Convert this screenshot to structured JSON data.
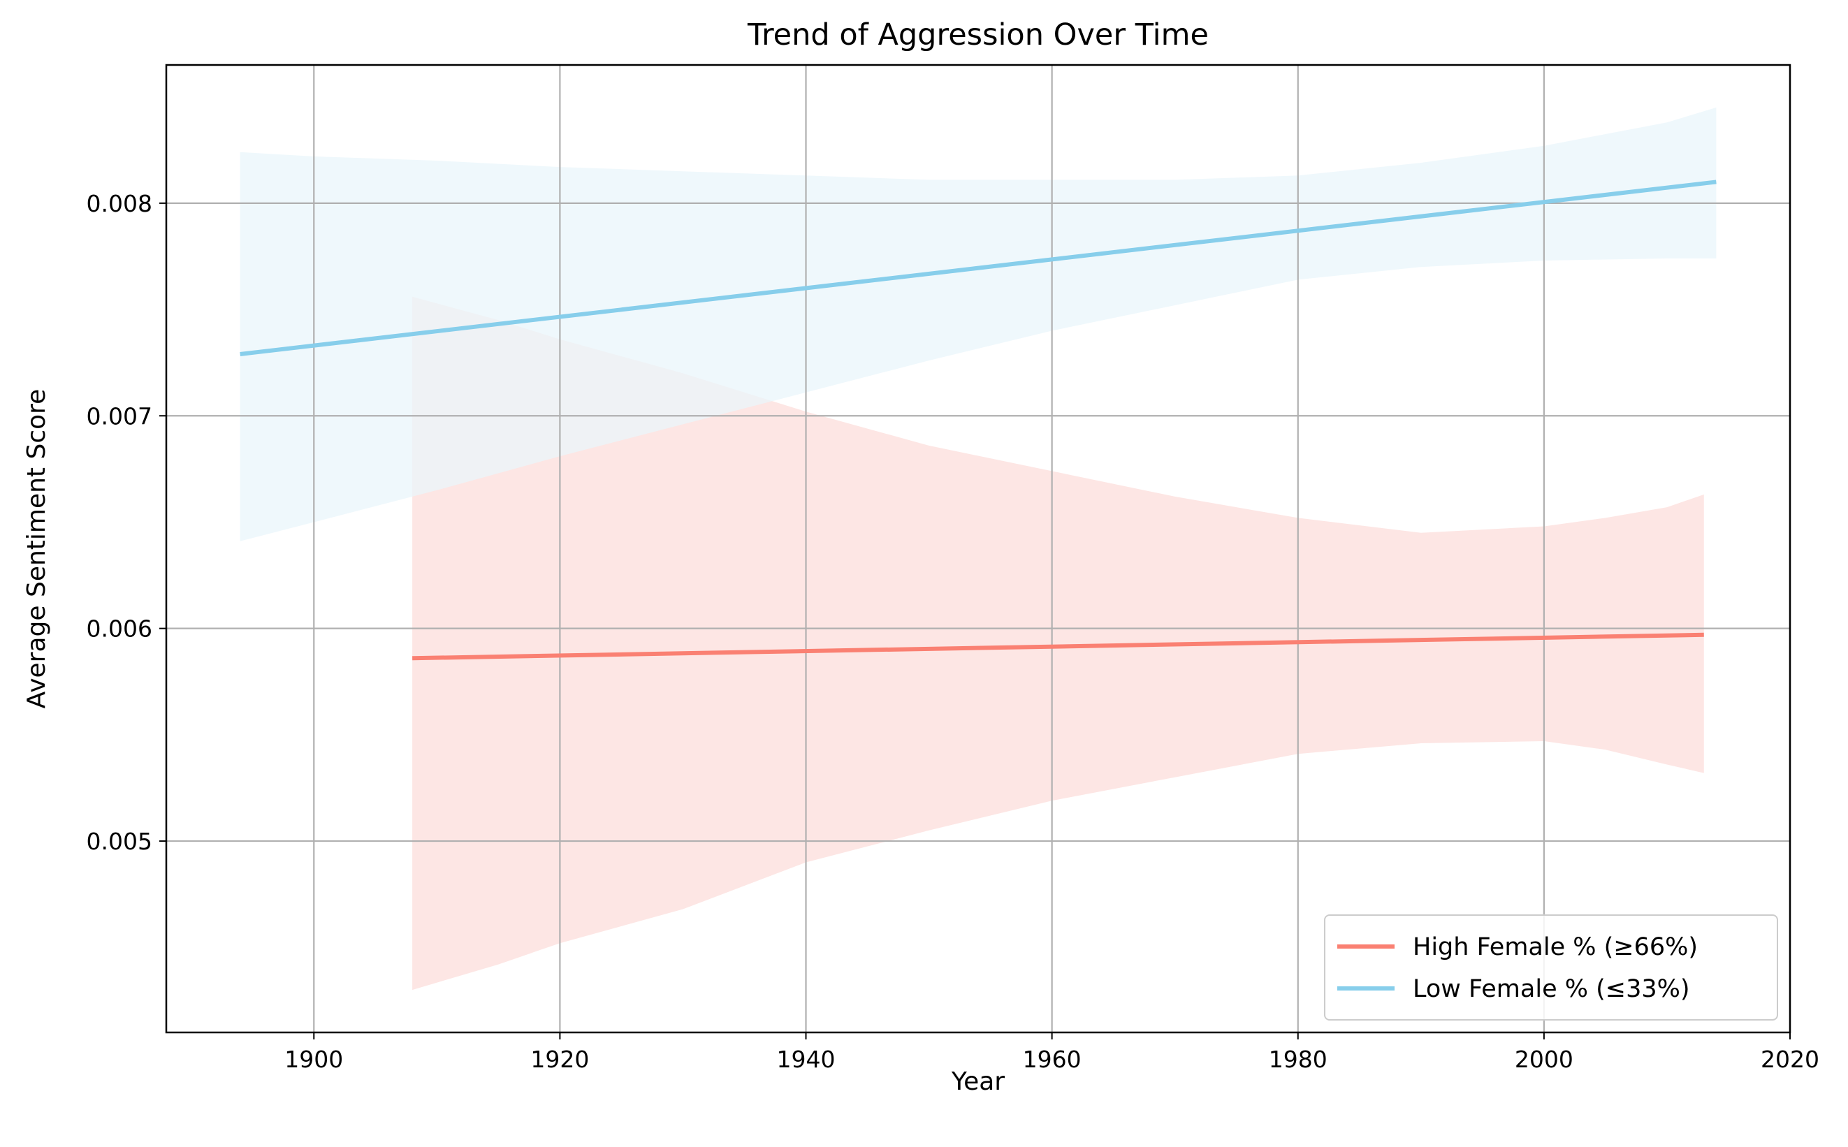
{
  "chart_data": {
    "type": "line",
    "title": "Trend of Aggression Over Time",
    "xlabel": "Year",
    "ylabel": "Average Sentiment Score",
    "xlim": [
      1888,
      2020
    ],
    "ylim": [
      0.0041,
      0.00865
    ],
    "x_ticks": [
      1900,
      1920,
      1940,
      1960,
      1980,
      2000,
      2020
    ],
    "x_tick_labels": [
      "1900",
      "1920",
      "1940",
      "1960",
      "1980",
      "2000",
      "2020"
    ],
    "y_ticks": [
      0.005,
      0.006,
      0.007,
      0.008
    ],
    "y_tick_labels": [
      "0.005",
      "0.006",
      "0.007",
      "0.008"
    ],
    "grid": true,
    "legend_position": "lower-right",
    "series": [
      {
        "name": "High Female % (≥66%)",
        "color": "#FA8072",
        "band_color": "#FDE6E4",
        "x": [
          1908,
          2013
        ],
        "y": [
          0.00586,
          0.00597
        ],
        "ci_band": {
          "x": [
            1908,
            1915,
            1920,
            1930,
            1940,
            1950,
            1960,
            1970,
            1980,
            1990,
            2000,
            2005,
            2010,
            2013
          ],
          "upper": [
            0.00756,
            0.00745,
            0.00736,
            0.0072,
            0.00702,
            0.00686,
            0.00674,
            0.00662,
            0.00652,
            0.00645,
            0.00648,
            0.00652,
            0.00657,
            0.00663
          ],
          "lower": [
            0.0043,
            0.00442,
            0.00452,
            0.00468,
            0.0049,
            0.00505,
            0.00519,
            0.0053,
            0.00541,
            0.00546,
            0.00547,
            0.00543,
            0.00536,
            0.00532
          ]
        }
      },
      {
        "name": "Low Female % (≤33%)",
        "color": "#87CEEB",
        "band_color": "#EAF5FB",
        "x": [
          1894,
          2014
        ],
        "y": [
          0.00729,
          0.0081
        ],
        "ci_band": {
          "x": [
            1894,
            1900,
            1910,
            1920,
            1930,
            1940,
            1950,
            1960,
            1970,
            1980,
            1990,
            2000,
            2010,
            2014
          ],
          "upper": [
            0.00824,
            0.00822,
            0.0082,
            0.00817,
            0.00815,
            0.00813,
            0.00811,
            0.00811,
            0.00811,
            0.00813,
            0.00819,
            0.00827,
            0.00838,
            0.00845
          ],
          "lower": [
            0.00641,
            0.0065,
            0.00665,
            0.00681,
            0.00696,
            0.00711,
            0.00726,
            0.0074,
            0.00752,
            0.00764,
            0.0077,
            0.00773,
            0.00774,
            0.00774
          ]
        }
      }
    ]
  }
}
